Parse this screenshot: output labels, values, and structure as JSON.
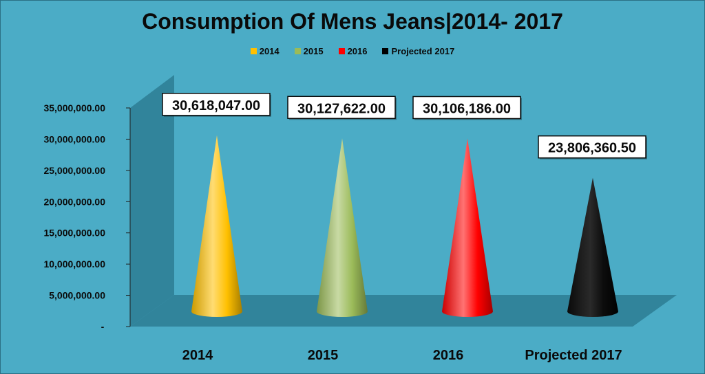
{
  "chart_data": {
    "type": "bar",
    "title": "Consumption Of Mens Jeans|2014- 2017",
    "categories": [
      "2014",
      "2015",
      "2016",
      "Projected 2017"
    ],
    "values": [
      30618047.0,
      30127622.0,
      30106186.0,
      23806360.5
    ],
    "value_labels": [
      "30,618,047.00",
      "30,127,622.00",
      "30,106,186.00",
      "23,806,360.50"
    ],
    "colors": [
      "#FFC000",
      "#9BBB59",
      "#FF0000",
      "#000000"
    ],
    "legend": {
      "position": "top",
      "entries": [
        "2014",
        "2015",
        "2016",
        "Projected 2017"
      ]
    },
    "ylim": [
      0,
      35000000
    ],
    "y_ticks": [
      {
        "value": 0,
        "label": "-"
      },
      {
        "value": 5000000,
        "label": "5,000,000.00"
      },
      {
        "value": 10000000,
        "label": "10,000,000.00"
      },
      {
        "value": 15000000,
        "label": "15,000,000.00"
      },
      {
        "value": 20000000,
        "label": "20,000,000.00"
      },
      {
        "value": 25000000,
        "label": "25,000,000.00"
      },
      {
        "value": 30000000,
        "label": "30,000,000.00"
      },
      {
        "value": 35000000,
        "label": "35,000,000.00"
      }
    ],
    "mark_shape": "cone-3d",
    "grid": false
  }
}
